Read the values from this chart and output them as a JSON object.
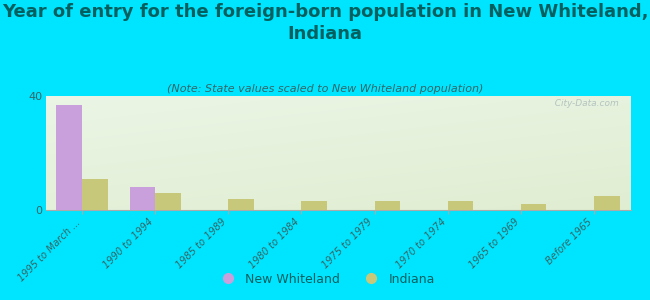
{
  "title": "Year of entry for the foreign-born population in New Whiteland,\nIndiana",
  "subtitle": "(Note: State values scaled to New Whiteland population)",
  "categories": [
    "1995 to March ...",
    "1990 to 1994",
    "1985 to 1989",
    "1980 to 1984",
    "1975 to 1979",
    "1970 to 1974",
    "1965 to 1969",
    "Before 1965"
  ],
  "new_whiteland": [
    37,
    8,
    0,
    0,
    0,
    0,
    0,
    0
  ],
  "indiana": [
    11,
    6,
    4,
    3,
    3,
    3,
    2,
    5
  ],
  "bar_color_nw": "#c9a0dc",
  "bar_color_in": "#c8c87a",
  "background_color": "#00e5ff",
  "ylim": [
    0,
    40
  ],
  "yticks": [
    0,
    40
  ],
  "title_fontsize": 13,
  "subtitle_fontsize": 8,
  "title_color": "#006060",
  "subtitle_color": "#336666",
  "tick_color": "#336666",
  "legend_label_nw": "New Whiteland",
  "legend_label_in": "Indiana",
  "watermark": "  City-Data.com"
}
